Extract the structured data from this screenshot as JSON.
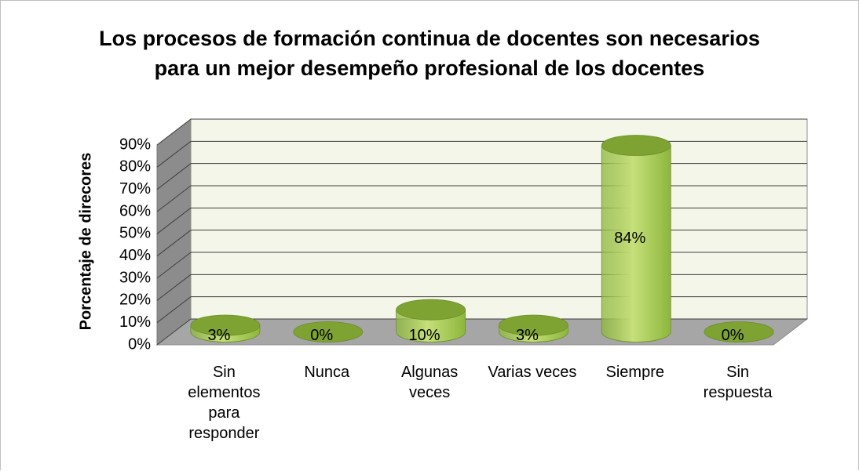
{
  "chart_data": {
    "type": "bar3d",
    "title": "Los procesos de formación continua de docentes son necesarios para un mejor desempeño profesional de los docentes",
    "y_label": "Porcentaje de direcores",
    "categories": [
      "Sin elementos para responder",
      "Nunca",
      "Algunas veces",
      "Varias veces",
      "Siempre",
      "Sin respuesta"
    ],
    "values": [
      3,
      0,
      10,
      3,
      84,
      0
    ],
    "value_labels": [
      "3%",
      "0%",
      "10%",
      "3%",
      "84%",
      "0%"
    ],
    "color": "#8db63c",
    "ylim": [
      0,
      90
    ],
    "yticks": [
      {
        "value": 0,
        "label": "0%"
      },
      {
        "value": 10,
        "label": "10%"
      },
      {
        "value": 20,
        "label": "20%"
      },
      {
        "value": 30,
        "label": "30%"
      },
      {
        "value": 40,
        "label": "40%"
      },
      {
        "value": 50,
        "label": "50%"
      },
      {
        "value": 60,
        "label": "60%"
      },
      {
        "value": 70,
        "label": "70%"
      },
      {
        "value": 80,
        "label": "80%"
      },
      {
        "value": 90,
        "label": "90%"
      }
    ],
    "grid": true
  }
}
